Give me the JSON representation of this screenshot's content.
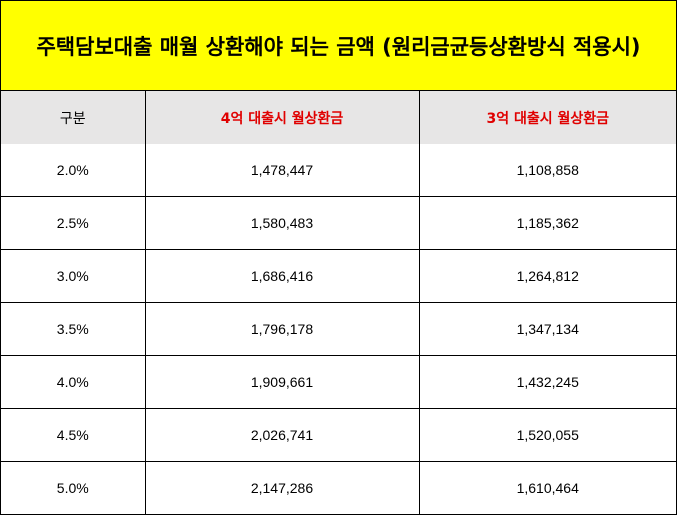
{
  "title": "주택담보대출 매월 상환해야 되는 금액 (원리금균등상환방식 적용시)",
  "table": {
    "headers": [
      "구분",
      "4억 대출시 월상환금",
      "3억 대출시 월상환금"
    ],
    "rows": [
      [
        "2.0%",
        "1,478,447",
        "1,108,858"
      ],
      [
        "2.5%",
        "1,580,483",
        "1,185,362"
      ],
      [
        "3.0%",
        "1,686,416",
        "1,264,812"
      ],
      [
        "3.5%",
        "1,796,178",
        "1,347,134"
      ],
      [
        "4.0%",
        "1,909,661",
        "1,432,245"
      ],
      [
        "4.5%",
        "2,026,741",
        "1,520,055"
      ],
      [
        "5.0%",
        "2,147,286",
        "1,610,464"
      ]
    ]
  },
  "colors": {
    "title_background": "#ffff00",
    "header_background": "#e7e6e6",
    "header_highlight_text": "#e00000"
  }
}
